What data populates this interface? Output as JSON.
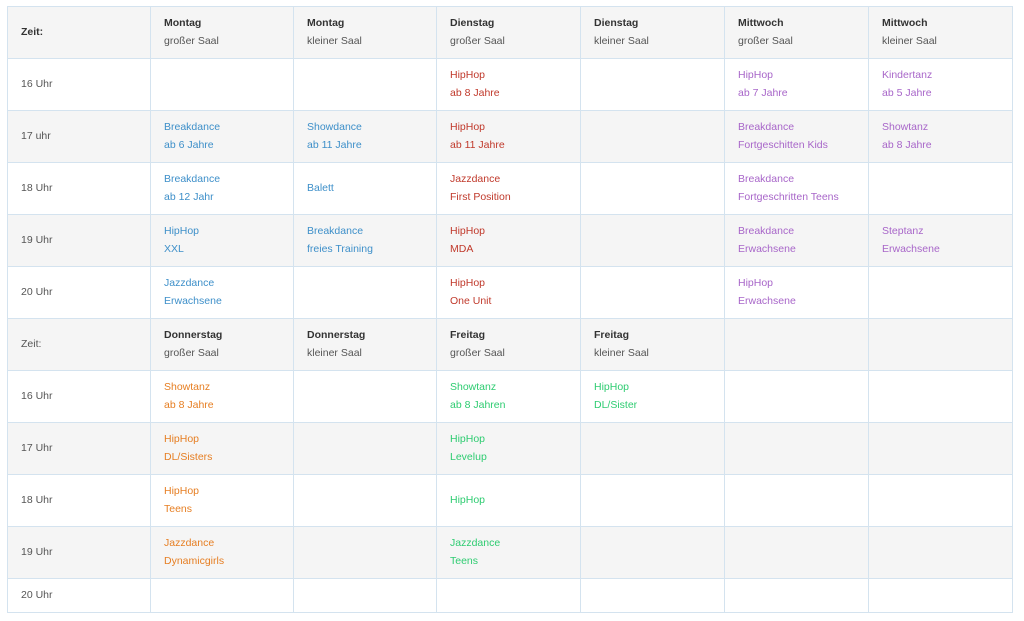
{
  "colors": {
    "blue": "#3d8fc9",
    "red": "#c0392b",
    "purple": "#a866c9",
    "orange": "#e67e22",
    "green": "#2ecc71"
  },
  "week1": {
    "header": {
      "time_label": "Zeit:",
      "columns": [
        {
          "day": "Montag",
          "room": "großer Saal"
        },
        {
          "day": "Montag",
          "room": "kleiner Saal"
        },
        {
          "day": "Dienstag",
          "room": "großer Saal"
        },
        {
          "day": "Dienstag",
          "room": "kleiner Saal"
        },
        {
          "day": "Mittwoch",
          "room": "großer Saal"
        },
        {
          "day": "Mittwoch",
          "room": "kleiner Saal"
        }
      ]
    },
    "rows": [
      {
        "time": "16 Uhr",
        "cells": [
          null,
          null,
          {
            "name": "HipHop",
            "detail": "ab 8 Jahre"
          },
          null,
          {
            "name": "HipHop",
            "detail": "ab 7 Jahre"
          },
          {
            "name": "Kindertanz",
            "detail": "ab 5 Jahre"
          }
        ]
      },
      {
        "time": "17 uhr",
        "cells": [
          {
            "name": "Breakdance",
            "detail": "ab 6 Jahre"
          },
          {
            "name": "Showdance",
            "detail": "ab 11 Jahre"
          },
          {
            "name": "HipHop",
            "detail": "ab 11 Jahre"
          },
          null,
          {
            "name": "Breakdance",
            "detail": "Fortgeschitten Kids"
          },
          {
            "name": "Showtanz",
            "detail": "ab 8 Jahre"
          }
        ]
      },
      {
        "time": "18 Uhr",
        "cells": [
          {
            "name": "Breakdance",
            "detail": "ab 12 Jahr"
          },
          {
            "name": "Balett",
            "detail": ""
          },
          {
            "name": "Jazzdance",
            "detail": "First Position"
          },
          null,
          {
            "name": "Breakdance",
            "detail": "Fortgeschritten Teens"
          },
          null
        ]
      },
      {
        "time": "19 Uhr",
        "cells": [
          {
            "name": "HipHop",
            "detail": "XXL"
          },
          {
            "name": "Breakdance",
            "detail": "freies Training"
          },
          {
            "name": "HipHop",
            "detail": "MDA"
          },
          null,
          {
            "name": "Breakdance",
            "detail": "Erwachsene"
          },
          {
            "name": "Steptanz",
            "detail": "Erwachsene"
          }
        ]
      },
      {
        "time": "20 Uhr",
        "cells": [
          {
            "name": "Jazzdance",
            "detail": "Erwachsene"
          },
          null,
          {
            "name": "HipHop",
            "detail": "One Unit"
          },
          null,
          {
            "name": "HipHop",
            "detail": "Erwachsene"
          },
          null
        ]
      }
    ]
  },
  "week2": {
    "header": {
      "time_label": "Zeit:",
      "columns": [
        {
          "day": "Donnerstag",
          "room": "großer Saal"
        },
        {
          "day": "Donnerstag",
          "room": "kleiner Saal"
        },
        {
          "day": "Freitag",
          "room": "großer Saal"
        },
        {
          "day": "Freitag",
          "room": "kleiner Saal"
        },
        null,
        null
      ]
    },
    "rows": [
      {
        "time": "16 Uhr",
        "cells": [
          {
            "name": "Showtanz",
            "detail": "ab 8 Jahre"
          },
          null,
          {
            "name": "Showtanz",
            "detail": "ab 8 Jahren"
          },
          {
            "name": "HipHop",
            "detail": "DL/Sister"
          },
          null,
          null
        ]
      },
      {
        "time": "17 Uhr",
        "cells": [
          {
            "name": "HipHop",
            "detail": "DL/Sisters"
          },
          null,
          {
            "name": "HipHop",
            "detail": "Levelup"
          },
          null,
          null,
          null
        ]
      },
      {
        "time": "18 Uhr",
        "cells": [
          {
            "name": "HipHop",
            "detail": "Teens"
          },
          null,
          {
            "name": "HipHop",
            "detail": ""
          },
          null,
          null,
          null
        ]
      },
      {
        "time": "19 Uhr",
        "cells": [
          {
            "name": "Jazzdance",
            "detail": "Dynamicgirls"
          },
          null,
          {
            "name": "Jazzdance",
            "detail": "Teens"
          },
          null,
          null,
          null
        ]
      },
      {
        "time": "20 Uhr",
        "cells": [
          null,
          null,
          null,
          null,
          null,
          null
        ]
      }
    ]
  }
}
